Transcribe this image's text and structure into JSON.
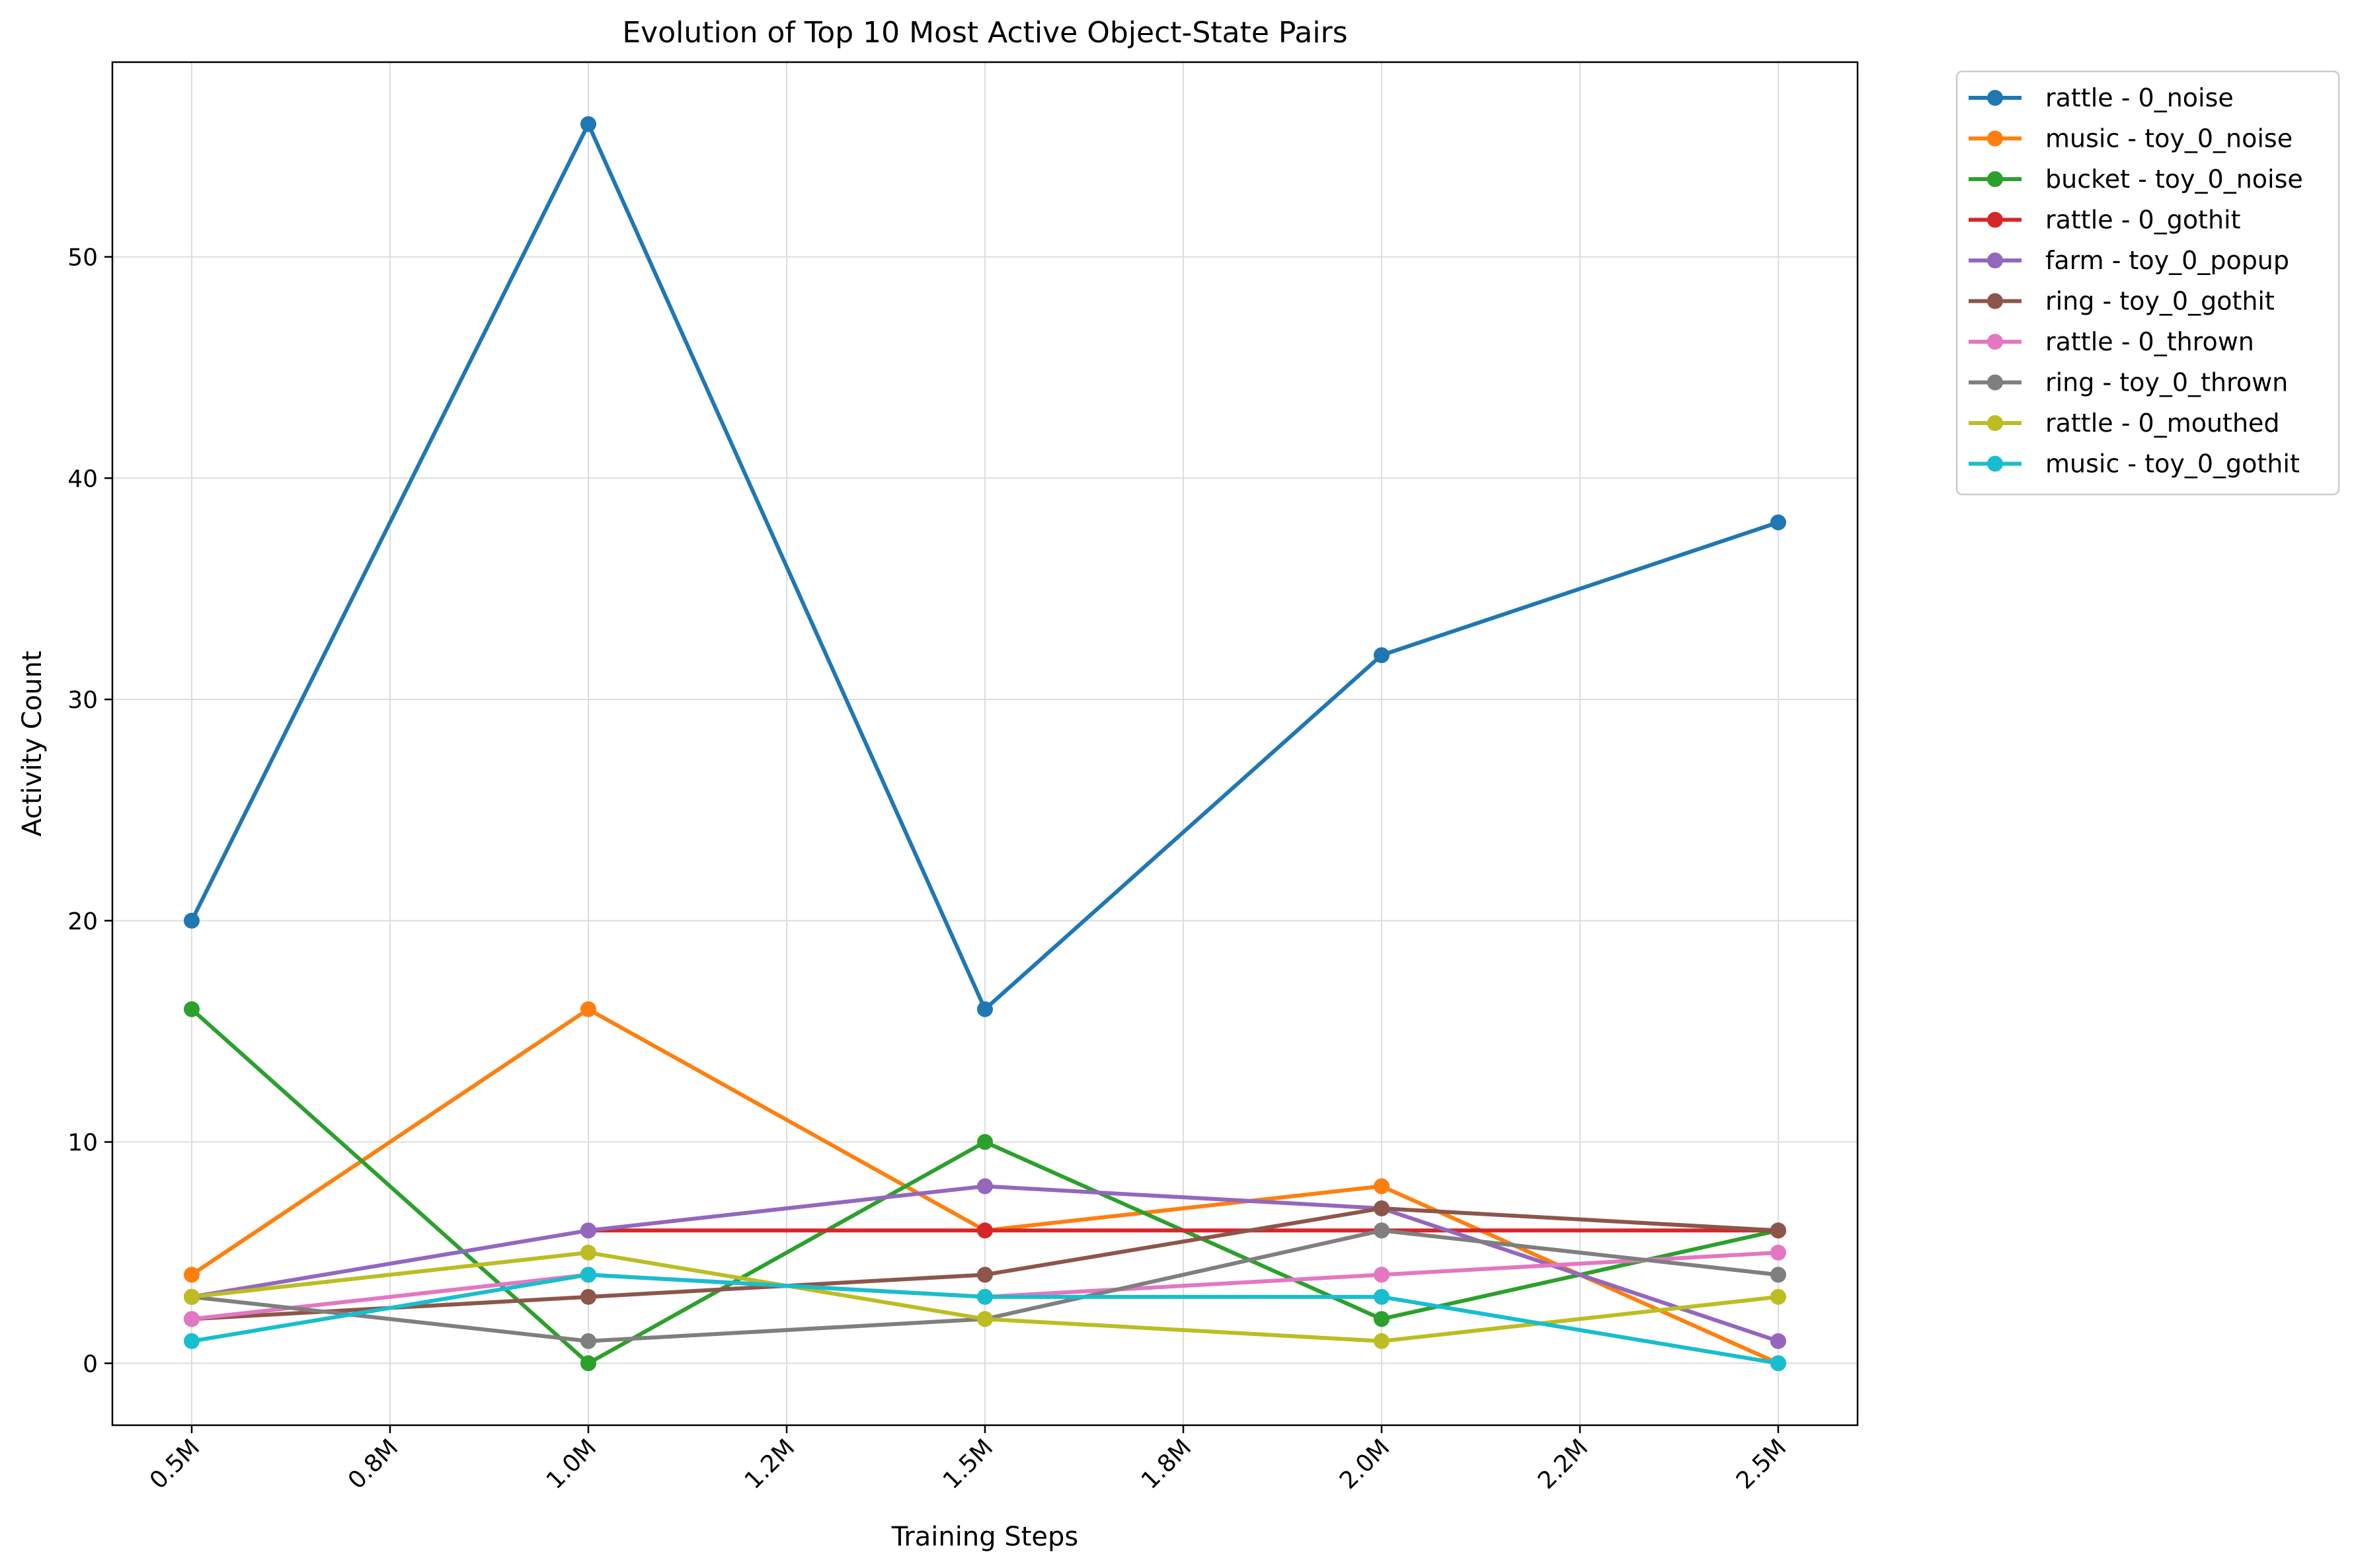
{
  "chart_data": {
    "type": "line",
    "title": "Evolution of Top 10 Most Active Object-State Pairs",
    "xlabel": "Training Steps",
    "ylabel": "Activity Count",
    "x": [
      0.5,
      1.0,
      1.5,
      2.0,
      2.5
    ],
    "x_unit": "M",
    "xlim": [
      0.4,
      2.6
    ],
    "ylim": [
      -2.8,
      58.8
    ],
    "xticks": [
      0.5,
      0.75,
      1.0,
      1.25,
      1.5,
      1.75,
      2.0,
      2.25,
      2.5
    ],
    "xtick_labels": [
      "0.5M",
      "0.8M",
      "1.0M",
      "1.2M",
      "1.5M",
      "1.8M",
      "2.0M",
      "2.2M",
      "2.5M"
    ],
    "yticks": [
      0,
      10,
      20,
      30,
      40,
      50
    ],
    "ytick_labels": [
      "0",
      "10",
      "20",
      "30",
      "40",
      "50"
    ],
    "grid": true,
    "legend_position": "outside-top-right",
    "marker": "circle",
    "series": [
      {
        "name": "rattle - 0_noise",
        "color": "#1f77b4",
        "values": [
          20,
          56,
          16,
          32,
          38
        ]
      },
      {
        "name": "music - toy_0_noise",
        "color": "#ff7f0e",
        "values": [
          4,
          16,
          6,
          8,
          0
        ]
      },
      {
        "name": "bucket - toy_0_noise",
        "color": "#2ca02c",
        "values": [
          16,
          0,
          10,
          2,
          6
        ]
      },
      {
        "name": "rattle - 0_gothit",
        "color": "#d62728",
        "values": [
          null,
          6,
          6,
          6,
          6
        ]
      },
      {
        "name": "farm - toy_0_popup",
        "color": "#9467bd",
        "values": [
          3,
          6,
          8,
          7,
          1
        ]
      },
      {
        "name": "ring - toy_0_gothit",
        "color": "#8c564b",
        "values": [
          2,
          3,
          4,
          7,
          6
        ]
      },
      {
        "name": "rattle - 0_thrown",
        "color": "#e377c2",
        "values": [
          2,
          4,
          3,
          4,
          5
        ]
      },
      {
        "name": "ring - toy_0_thrown",
        "color": "#7f7f7f",
        "values": [
          3,
          1,
          2,
          6,
          4
        ]
      },
      {
        "name": "rattle - 0_mouthed",
        "color": "#bcbd22",
        "values": [
          3,
          5,
          2,
          1,
          3
        ]
      },
      {
        "name": "music - toy_0_gothit",
        "color": "#17becf",
        "values": [
          1,
          4,
          3,
          3,
          0
        ]
      }
    ]
  }
}
